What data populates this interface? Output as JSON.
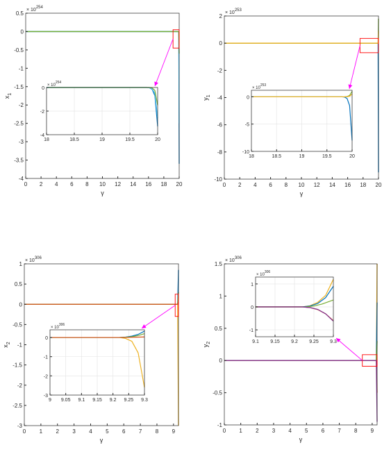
{
  "colors": {
    "axis": "#262626",
    "grid": "#e6e6e6",
    "blue": "#0072bd",
    "orange": "#d95319",
    "yellow": "#edb120",
    "purple": "#7e2f8e",
    "green": "#77ac30",
    "cyan": "#4dbeee",
    "zoom_box": "#ff0000",
    "zoom_arrow": "#ff00ff"
  },
  "chart_data": [
    {
      "id": "x1",
      "type": "line",
      "xlabel": "γ",
      "ylabel": "x",
      "ylabel_sub": "1",
      "exponent": {
        "base": "× 10",
        "power": "254"
      },
      "xlim": [
        0,
        20
      ],
      "ylim": [
        -4,
        0.5
      ],
      "xticks": [
        0,
        2,
        4,
        6,
        8,
        10,
        12,
        14,
        16,
        18,
        20
      ],
      "yticks": [
        -4,
        -3.5,
        -3,
        -2.5,
        -2,
        -1.5,
        -1,
        -0.5,
        0,
        0.5
      ],
      "grid": false,
      "series": [
        {
          "color": "blue",
          "x": [
            0,
            19.95,
            20.0
          ],
          "y": [
            0,
            0,
            -3.6
          ]
        },
        {
          "color": "cyan",
          "x": [
            0,
            19.95,
            20.0
          ],
          "y": [
            0,
            0,
            -2.5
          ]
        },
        {
          "color": "green",
          "x": [
            0,
            19.95,
            20.0
          ],
          "y": [
            0,
            0,
            -0.6
          ]
        }
      ],
      "zoom_box": {
        "x": [
          19.2,
          20.0
        ],
        "y": [
          -0.45,
          0.05
        ]
      },
      "inset": {
        "exponent": {
          "base": "× 10",
          "power": "254"
        },
        "xlim": [
          18,
          20
        ],
        "ylim": [
          -4,
          0
        ],
        "xticks": [
          18,
          18.5,
          19,
          19.5,
          20
        ],
        "yticks": [
          -4,
          -2,
          0
        ],
        "grid": true,
        "series": [
          {
            "color": "blue",
            "x": [
              18,
              19.8,
              19.85,
              19.9,
              19.95,
              20.0
            ],
            "y": [
              0,
              0,
              -0.02,
              -0.15,
              -0.7,
              -3.3
            ]
          },
          {
            "color": "cyan",
            "x": [
              18,
              19.8,
              19.85,
              19.9,
              19.95,
              20.0
            ],
            "y": [
              0,
              0,
              -0.02,
              -0.12,
              -0.5,
              -2.6
            ]
          },
          {
            "color": "green",
            "x": [
              18,
              19.85,
              19.9,
              19.95,
              20.0
            ],
            "y": [
              0,
              0,
              -0.04,
              -0.25,
              -1.5
            ]
          }
        ]
      }
    },
    {
      "id": "y1",
      "type": "line",
      "xlabel": "γ",
      "ylabel": "y",
      "ylabel_sub": "1",
      "exponent": {
        "base": "× 10",
        "power": "253"
      },
      "xlim": [
        0,
        20
      ],
      "ylim": [
        -10,
        2
      ],
      "xticks": [
        0,
        2,
        4,
        6,
        8,
        10,
        12,
        14,
        16,
        18,
        20
      ],
      "yticks": [
        -10,
        -8,
        -6,
        -4,
        -2,
        0,
        2
      ],
      "grid": false,
      "series": [
        {
          "color": "blue",
          "x": [
            0,
            19.95,
            20.0
          ],
          "y": [
            0,
            0,
            -9.5
          ]
        },
        {
          "color": "green",
          "x": [
            0,
            19.95,
            20.0
          ],
          "y": [
            0,
            0,
            1.8
          ]
        },
        {
          "color": "yellow",
          "x": [
            0,
            19.95,
            20.0
          ],
          "y": [
            0,
            0,
            0.9
          ]
        }
      ],
      "zoom_box": {
        "x": [
          17.6,
          20.0
        ],
        "y": [
          -0.7,
          0.35
        ]
      },
      "inset": {
        "exponent": {
          "base": "× 10",
          "power": "253"
        },
        "xlim": [
          18,
          20
        ],
        "ylim": [
          -10,
          1.2
        ],
        "xticks": [
          18,
          18.5,
          19,
          19.5,
          20
        ],
        "yticks": [
          -10,
          -5,
          0
        ],
        "grid": true,
        "series": [
          {
            "color": "blue",
            "x": [
              18,
              19.8,
              19.85,
              19.9,
              19.95,
              20.0
            ],
            "y": [
              0,
              0,
              -0.05,
              -0.3,
              -1.6,
              -8.0
            ]
          },
          {
            "color": "green",
            "x": [
              18,
              19.85,
              19.9,
              19.95,
              20.0
            ],
            "y": [
              0,
              0,
              0.05,
              0.25,
              1.0
            ]
          },
          {
            "color": "yellow",
            "x": [
              18,
              19.85,
              19.9,
              19.95,
              20.0
            ],
            "y": [
              0,
              0,
              0.02,
              0.12,
              0.5
            ]
          }
        ]
      }
    },
    {
      "id": "x2",
      "type": "line",
      "xlabel": "γ",
      "ylabel": "x",
      "ylabel_sub": "2",
      "exponent": {
        "base": "× 10",
        "power": "306"
      },
      "xlim": [
        0,
        9.3
      ],
      "ylim": [
        -3,
        1
      ],
      "xticks": [
        0,
        1,
        2,
        3,
        4,
        5,
        6,
        7,
        8,
        9
      ],
      "yticks": [
        -3,
        -2.5,
        -2,
        -1.5,
        -1,
        -0.5,
        0,
        0.5,
        1
      ],
      "grid": false,
      "series": [
        {
          "color": "yellow",
          "x": [
            0,
            9.25,
            9.3
          ],
          "y": [
            0,
            0,
            -3.0
          ]
        },
        {
          "color": "blue",
          "x": [
            0,
            9.25,
            9.3
          ],
          "y": [
            0,
            0,
            0.85
          ]
        },
        {
          "color": "green",
          "x": [
            0,
            9.25,
            9.3
          ],
          "y": [
            0,
            0,
            0.3
          ]
        },
        {
          "color": "orange",
          "x": [
            0,
            9.25,
            9.3
          ],
          "y": [
            0,
            0,
            0.05
          ]
        }
      ],
      "zoom_box": {
        "x": [
          9.1,
          9.3
        ],
        "y": [
          -0.3,
          0.25
        ]
      },
      "inset": {
        "exponent": {
          "base": "× 10",
          "power": "306"
        },
        "xlim": [
          9,
          9.3
        ],
        "ylim": [
          -3,
          0.4
        ],
        "xticks": [
          9,
          9.05,
          9.1,
          9.15,
          9.2,
          9.25,
          9.3
        ],
        "yticks": [
          -3,
          -2,
          -1,
          0
        ],
        "grid": true,
        "series": [
          {
            "color": "yellow",
            "x": [
              9,
              9.22,
              9.24,
              9.26,
              9.28,
              9.3
            ],
            "y": [
              0,
              0,
              -0.05,
              -0.2,
              -0.8,
              -2.6
            ]
          },
          {
            "color": "blue",
            "x": [
              9,
              9.22,
              9.24,
              9.26,
              9.28,
              9.3
            ],
            "y": [
              0,
              0,
              0.02,
              0.07,
              0.16,
              0.33
            ]
          },
          {
            "color": "green",
            "x": [
              9,
              9.22,
              9.24,
              9.26,
              9.28,
              9.3
            ],
            "y": [
              0,
              0,
              0.01,
              0.04,
              0.1,
              0.2
            ]
          },
          {
            "color": "orange",
            "x": [
              9,
              9.24,
              9.3
            ],
            "y": [
              0,
              0,
              0.03
            ]
          }
        ]
      }
    },
    {
      "id": "y2",
      "type": "line",
      "xlabel": "γ",
      "ylabel": "y",
      "ylabel_sub": "2",
      "exponent": {
        "base": "× 10",
        "power": "306"
      },
      "xlim": [
        0,
        9.3
      ],
      "ylim": [
        -1,
        1.5
      ],
      "xticks": [
        0,
        1,
        2,
        3,
        4,
        5,
        6,
        7,
        8,
        9
      ],
      "yticks": [
        -1,
        -0.5,
        0,
        0.5,
        1,
        1.5
      ],
      "grid": false,
      "series": [
        {
          "color": "yellow",
          "x": [
            0,
            9.25,
            9.3
          ],
          "y": [
            0,
            0,
            1.5
          ]
        },
        {
          "color": "blue",
          "x": [
            0,
            9.25,
            9.3
          ],
          "y": [
            0,
            0,
            0.9
          ]
        },
        {
          "color": "green",
          "x": [
            0,
            9.25,
            9.3
          ],
          "y": [
            0,
            0,
            0.3
          ]
        },
        {
          "color": "orange",
          "x": [
            0,
            9.25,
            9.3
          ],
          "y": [
            0,
            0,
            -0.5
          ]
        },
        {
          "color": "purple",
          "x": [
            0,
            9.25,
            9.3
          ],
          "y": [
            0,
            0,
            -0.95
          ]
        }
      ],
      "zoom_box": {
        "x": [
          8.4,
          9.3
        ],
        "y": [
          -0.09,
          0.09
        ]
      },
      "inset": {
        "exponent": {
          "base": "× 10",
          "power": "306"
        },
        "xlim": [
          9.1,
          9.3
        ],
        "ylim": [
          -1.3,
          1.3
        ],
        "xticks": [
          9.1,
          9.15,
          9.2,
          9.25,
          9.3
        ],
        "yticks": [
          -1,
          0,
          1
        ],
        "grid": true,
        "series": [
          {
            "color": "yellow",
            "x": [
              9.1,
              9.22,
              9.24,
              9.26,
              9.28,
              9.3
            ],
            "y": [
              0,
              0,
              0.05,
              0.2,
              0.5,
              1.2
            ]
          },
          {
            "color": "blue",
            "x": [
              9.1,
              9.22,
              9.24,
              9.26,
              9.28,
              9.3
            ],
            "y": [
              0,
              0,
              0.04,
              0.15,
              0.4,
              0.9
            ]
          },
          {
            "color": "green",
            "x": [
              9.1,
              9.23,
              9.25,
              9.27,
              9.3
            ],
            "y": [
              0,
              0,
              0.04,
              0.12,
              0.3
            ]
          },
          {
            "color": "orange",
            "x": [
              9.1,
              9.22,
              9.24,
              9.26,
              9.28,
              9.3
            ],
            "y": [
              0,
              0,
              -0.03,
              -0.12,
              -0.3,
              -0.6
            ]
          },
          {
            "color": "purple",
            "x": [
              9.1,
              9.22,
              9.24,
              9.26,
              9.28,
              9.3
            ],
            "y": [
              0,
              0,
              -0.03,
              -0.11,
              -0.3,
              -0.62
            ]
          }
        ]
      }
    }
  ]
}
